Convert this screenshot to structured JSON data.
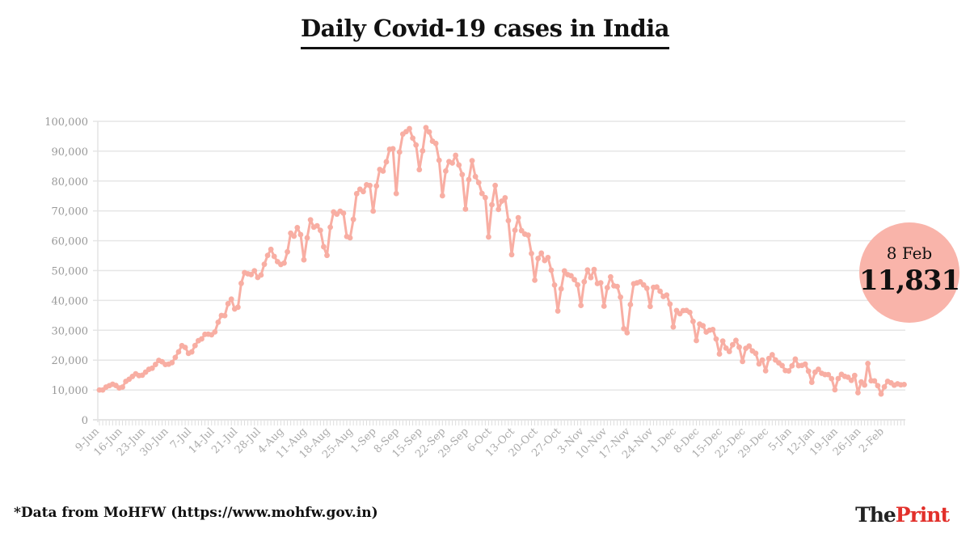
{
  "title": "Daily Covid-19 cases in India",
  "callout": {
    "date": "8 Feb",
    "value": "11,831"
  },
  "source": "*Data from MoHFW (https://www.mohfw.gov.in)",
  "logo": {
    "part1": "The",
    "part2": "Print"
  },
  "colors": {
    "line": "#f8aea3",
    "grid": "#e6e6e6",
    "callout": "#f9b4aa",
    "logo_accent": "#e2302b"
  },
  "chart_data": {
    "type": "line",
    "title": "Daily Covid-19 cases in India",
    "xlabel": "",
    "ylabel": "",
    "ylim": [
      0,
      100000
    ],
    "yticks": [
      0,
      10000,
      20000,
      30000,
      40000,
      50000,
      60000,
      70000,
      80000,
      90000,
      100000
    ],
    "ytick_labels": [
      "0",
      "10,000",
      "20,000",
      "30,000",
      "40,000",
      "50,000",
      "60,000",
      "70,000",
      "80,000",
      "90,000",
      "100,000"
    ],
    "xtick_labels": [
      "9-Jun",
      "16-Jun",
      "23-Jun",
      "30-Jun",
      "7-Jul",
      "14-Jul",
      "21-Jul",
      "28-Jul",
      "4-Aug",
      "11-Aug",
      "18-Aug",
      "25-Aug",
      "1-Sep",
      "8-Sep",
      "15-Sep",
      "22-Sep",
      "29-Sep",
      "6-Oct",
      "13-Oct",
      "20-Oct",
      "27-Oct",
      "3-Nov",
      "10-Nov",
      "17-Nov",
      "24-Nov",
      "1-Dec",
      "8-Dec",
      "15-Dec",
      "22-Dec",
      "29-Dec",
      "5-Jan",
      "12-Jan",
      "19-Jan",
      "26-Jan",
      "2-Feb"
    ],
    "grid": true,
    "x": [
      "9-Jun",
      "10-Jun",
      "11-Jun",
      "12-Jun",
      "13-Jun",
      "14-Jun",
      "15-Jun",
      "16-Jun",
      "17-Jun",
      "18-Jun",
      "19-Jun",
      "20-Jun",
      "21-Jun",
      "22-Jun",
      "23-Jun",
      "24-Jun",
      "25-Jun",
      "26-Jun",
      "27-Jun",
      "28-Jun",
      "29-Jun",
      "30-Jun",
      "1-Jul",
      "2-Jul",
      "3-Jul",
      "4-Jul",
      "5-Jul",
      "6-Jul",
      "7-Jul",
      "8-Jul",
      "9-Jul",
      "10-Jul",
      "11-Jul",
      "12-Jul",
      "13-Jul",
      "14-Jul",
      "15-Jul",
      "16-Jul",
      "17-Jul",
      "18-Jul",
      "19-Jul",
      "20-Jul",
      "21-Jul",
      "22-Jul",
      "23-Jul",
      "24-Jul",
      "25-Jul",
      "26-Jul",
      "27-Jul",
      "28-Jul",
      "29-Jul",
      "30-Jul",
      "31-Jul",
      "1-Aug",
      "2-Aug",
      "3-Aug",
      "4-Aug",
      "5-Aug",
      "6-Aug",
      "7-Aug",
      "8-Aug",
      "9-Aug",
      "10-Aug",
      "11-Aug",
      "12-Aug",
      "13-Aug",
      "14-Aug",
      "15-Aug",
      "16-Aug",
      "17-Aug",
      "18-Aug",
      "19-Aug",
      "20-Aug",
      "21-Aug",
      "22-Aug",
      "23-Aug",
      "24-Aug",
      "25-Aug",
      "26-Aug",
      "27-Aug",
      "28-Aug",
      "29-Aug",
      "30-Aug",
      "31-Aug",
      "1-Sep",
      "2-Sep",
      "3-Sep",
      "4-Sep",
      "5-Sep",
      "6-Sep",
      "7-Sep",
      "8-Sep",
      "9-Sep",
      "10-Sep",
      "11-Sep",
      "12-Sep",
      "13-Sep",
      "14-Sep",
      "15-Sep",
      "16-Sep",
      "17-Sep",
      "18-Sep",
      "19-Sep",
      "20-Sep",
      "21-Sep",
      "22-Sep",
      "23-Sep",
      "24-Sep",
      "25-Sep",
      "26-Sep",
      "27-Sep",
      "28-Sep",
      "29-Sep",
      "30-Sep",
      "1-Oct",
      "2-Oct",
      "3-Oct",
      "4-Oct",
      "5-Oct",
      "6-Oct",
      "7-Oct",
      "8-Oct",
      "9-Oct",
      "10-Oct",
      "11-Oct",
      "12-Oct",
      "13-Oct",
      "14-Oct",
      "15-Oct",
      "16-Oct",
      "17-Oct",
      "18-Oct",
      "19-Oct",
      "20-Oct",
      "21-Oct",
      "22-Oct",
      "23-Oct",
      "24-Oct",
      "25-Oct",
      "26-Oct",
      "27-Oct",
      "28-Oct",
      "29-Oct",
      "30-Oct",
      "31-Oct",
      "1-Nov",
      "2-Nov",
      "3-Nov",
      "4-Nov",
      "5-Nov",
      "6-Nov",
      "7-Nov",
      "8-Nov",
      "9-Nov",
      "10-Nov",
      "11-Nov",
      "12-Nov",
      "13-Nov",
      "14-Nov",
      "15-Nov",
      "16-Nov",
      "17-Nov",
      "18-Nov",
      "19-Nov",
      "20-Nov",
      "21-Nov",
      "22-Nov",
      "23-Nov",
      "24-Nov",
      "25-Nov",
      "26-Nov",
      "27-Nov",
      "28-Nov",
      "29-Nov",
      "30-Nov",
      "1-Dec",
      "2-Dec",
      "3-Dec",
      "4-Dec",
      "5-Dec",
      "6-Dec",
      "7-Dec",
      "8-Dec",
      "9-Dec",
      "10-Dec",
      "11-Dec",
      "12-Dec",
      "13-Dec",
      "14-Dec",
      "15-Dec",
      "16-Dec",
      "17-Dec",
      "18-Dec",
      "19-Dec",
      "20-Dec",
      "21-Dec",
      "22-Dec",
      "23-Dec",
      "24-Dec",
      "25-Dec",
      "26-Dec",
      "27-Dec",
      "28-Dec",
      "29-Dec",
      "30-Dec",
      "31-Dec",
      "1-Jan",
      "2-Jan",
      "3-Jan",
      "4-Jan",
      "5-Jan",
      "6-Jan",
      "7-Jan",
      "8-Jan",
      "9-Jan",
      "10-Jan",
      "11-Jan",
      "12-Jan",
      "13-Jan",
      "14-Jan",
      "15-Jan",
      "16-Jan",
      "17-Jan",
      "18-Jan",
      "19-Jan",
      "20-Jan",
      "21-Jan",
      "22-Jan",
      "23-Jan",
      "24-Jan",
      "25-Jan",
      "26-Jan",
      "27-Jan",
      "28-Jan",
      "29-Jan",
      "30-Jan",
      "31-Jan",
      "1-Feb",
      "2-Feb",
      "3-Feb",
      "4-Feb",
      "5-Feb",
      "6-Feb",
      "7-Feb",
      "8-Feb"
    ],
    "values": [
      9985,
      9996,
      10956,
      11458,
      11929,
      11502,
      10667,
      10974,
      12881,
      13586,
      14516,
      15413,
      14821,
      14933,
      15968,
      16922,
      17296,
      18552,
      19906,
      19459,
      18522,
      18653,
      19148,
      20903,
      22771,
      24850,
      24248,
      22252,
      22752,
      24879,
      26506,
      27114,
      28637,
      28701,
      28498,
      29429,
      32695,
      34956,
      34884,
      38902,
      40425,
      37148,
      37724,
      45720,
      49310,
      48916,
      48661,
      49931,
      47704,
      48513,
      52123,
      55079,
      57118,
      54735,
      52972,
      52050,
      52509,
      56282,
      62538,
      61537,
      64399,
      62064,
      53601,
      60963,
      66999,
      64553,
      65002,
      63490,
      57982,
      55079,
      64531,
      69652,
      68898,
      69878,
      69239,
      61408,
      60975,
      67151,
      75760,
      77266,
      76472,
      78761,
      78512,
      69921,
      78357,
      83883,
      83341,
      86432,
      90632,
      90802,
      75809,
      89706,
      95735,
      96551,
      97570,
      94372,
      92071,
      83809,
      90123,
      97894,
      96424,
      93337,
      92605,
      86961,
      75083,
      83347,
      86508,
      86052,
      88600,
      85362,
      82170,
      70589,
      80472,
      86821,
      81484,
      79476,
      75829,
      74442,
      61267,
      72049,
      78524,
      70496,
      73272,
      74383,
      66732,
      55342,
      63509,
      67708,
      63371,
      62212,
      61871,
      55722,
      46790,
      54044,
      55839,
      53370,
      54366,
      50129,
      45149,
      36469,
      43893,
      49881,
      48648,
      48268,
      46963,
      45230,
      38310,
      46253,
      50209,
      47638,
      50357,
      45674,
      45903,
      38073,
      44281,
      47905,
      44879,
      44684,
      41100,
      30548,
      29164,
      38617,
      45576,
      45882,
      46232,
      45209,
      44059,
      37975,
      44376,
      44489,
      43082,
      41322,
      41810,
      38772,
      31118,
      36604,
      35551,
      36595,
      36652,
      36011,
      32981,
      26567,
      32080,
      31521,
      29398,
      30006,
      30254,
      27071,
      22065,
      26382,
      24010,
      22890,
      25152,
      26624,
      24337,
      19556,
      23950,
      24712,
      23068,
      22272,
      18732,
      20021,
      16432,
      20549,
      21822,
      20035,
      19079,
      18177,
      16505,
      16375,
      18088,
      20346,
      18139,
      18222,
      18645,
      16311,
      12584,
      15968,
      16946,
      15590,
      15158,
      15144,
      13788,
      10064,
      13823,
      15223,
      14545,
      14256,
      13203,
      14849,
      9102,
      12689,
      11666,
      18855,
      13083,
      13052,
      11427,
      8635,
      11039,
      12899,
      12408,
      11610,
      12059,
      11713,
      11831
    ]
  }
}
